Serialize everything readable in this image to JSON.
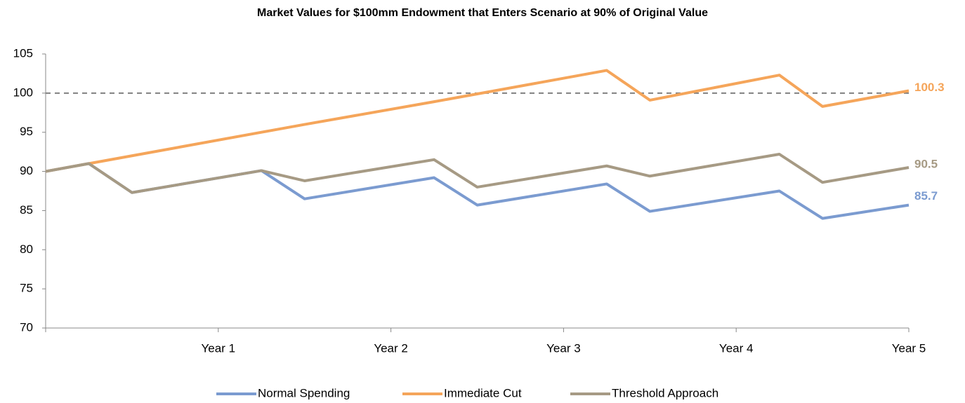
{
  "chart_data": {
    "type": "line",
    "title": "Market Values for $100mm Endowment that Enters Scenario at 90% of Original Value",
    "x": [
      0,
      0.25,
      0.5,
      1.25,
      1.5,
      2.25,
      2.5,
      3.25,
      3.5,
      4.25,
      4.5,
      5
    ],
    "xlim": [
      0,
      5
    ],
    "xticks": [
      {
        "value": 1,
        "label": "Year 1"
      },
      {
        "value": 2,
        "label": "Year 2"
      },
      {
        "value": 3,
        "label": "Year 3"
      },
      {
        "value": 4,
        "label": "Year 4"
      },
      {
        "value": 5,
        "label": "Year 5"
      }
    ],
    "ylim": [
      70,
      105
    ],
    "yticks": [
      70,
      75,
      80,
      85,
      90,
      95,
      100,
      105
    ],
    "reference_line": 100,
    "legend": "bottom",
    "series": [
      {
        "name": "Normal Spending",
        "color": "#7b9bd0",
        "values": [
          90,
          91,
          87.3,
          90.1,
          86.5,
          89.2,
          85.7,
          88.4,
          84.9,
          87.5,
          84.0,
          85.7
        ]
      },
      {
        "name": "Immediate Cut",
        "color": "#f5a55a",
        "values": [
          90,
          91,
          92.0,
          95.0,
          96.0,
          98.9,
          99.9,
          102.9,
          99.1,
          102.3,
          98.3,
          100.3
        ]
      },
      {
        "name": "Threshold Approach",
        "color": "#a69a84",
        "values": [
          90,
          91,
          87.3,
          90.1,
          88.8,
          91.5,
          88.0,
          90.7,
          89.4,
          92.2,
          88.6,
          90.5
        ]
      }
    ]
  }
}
